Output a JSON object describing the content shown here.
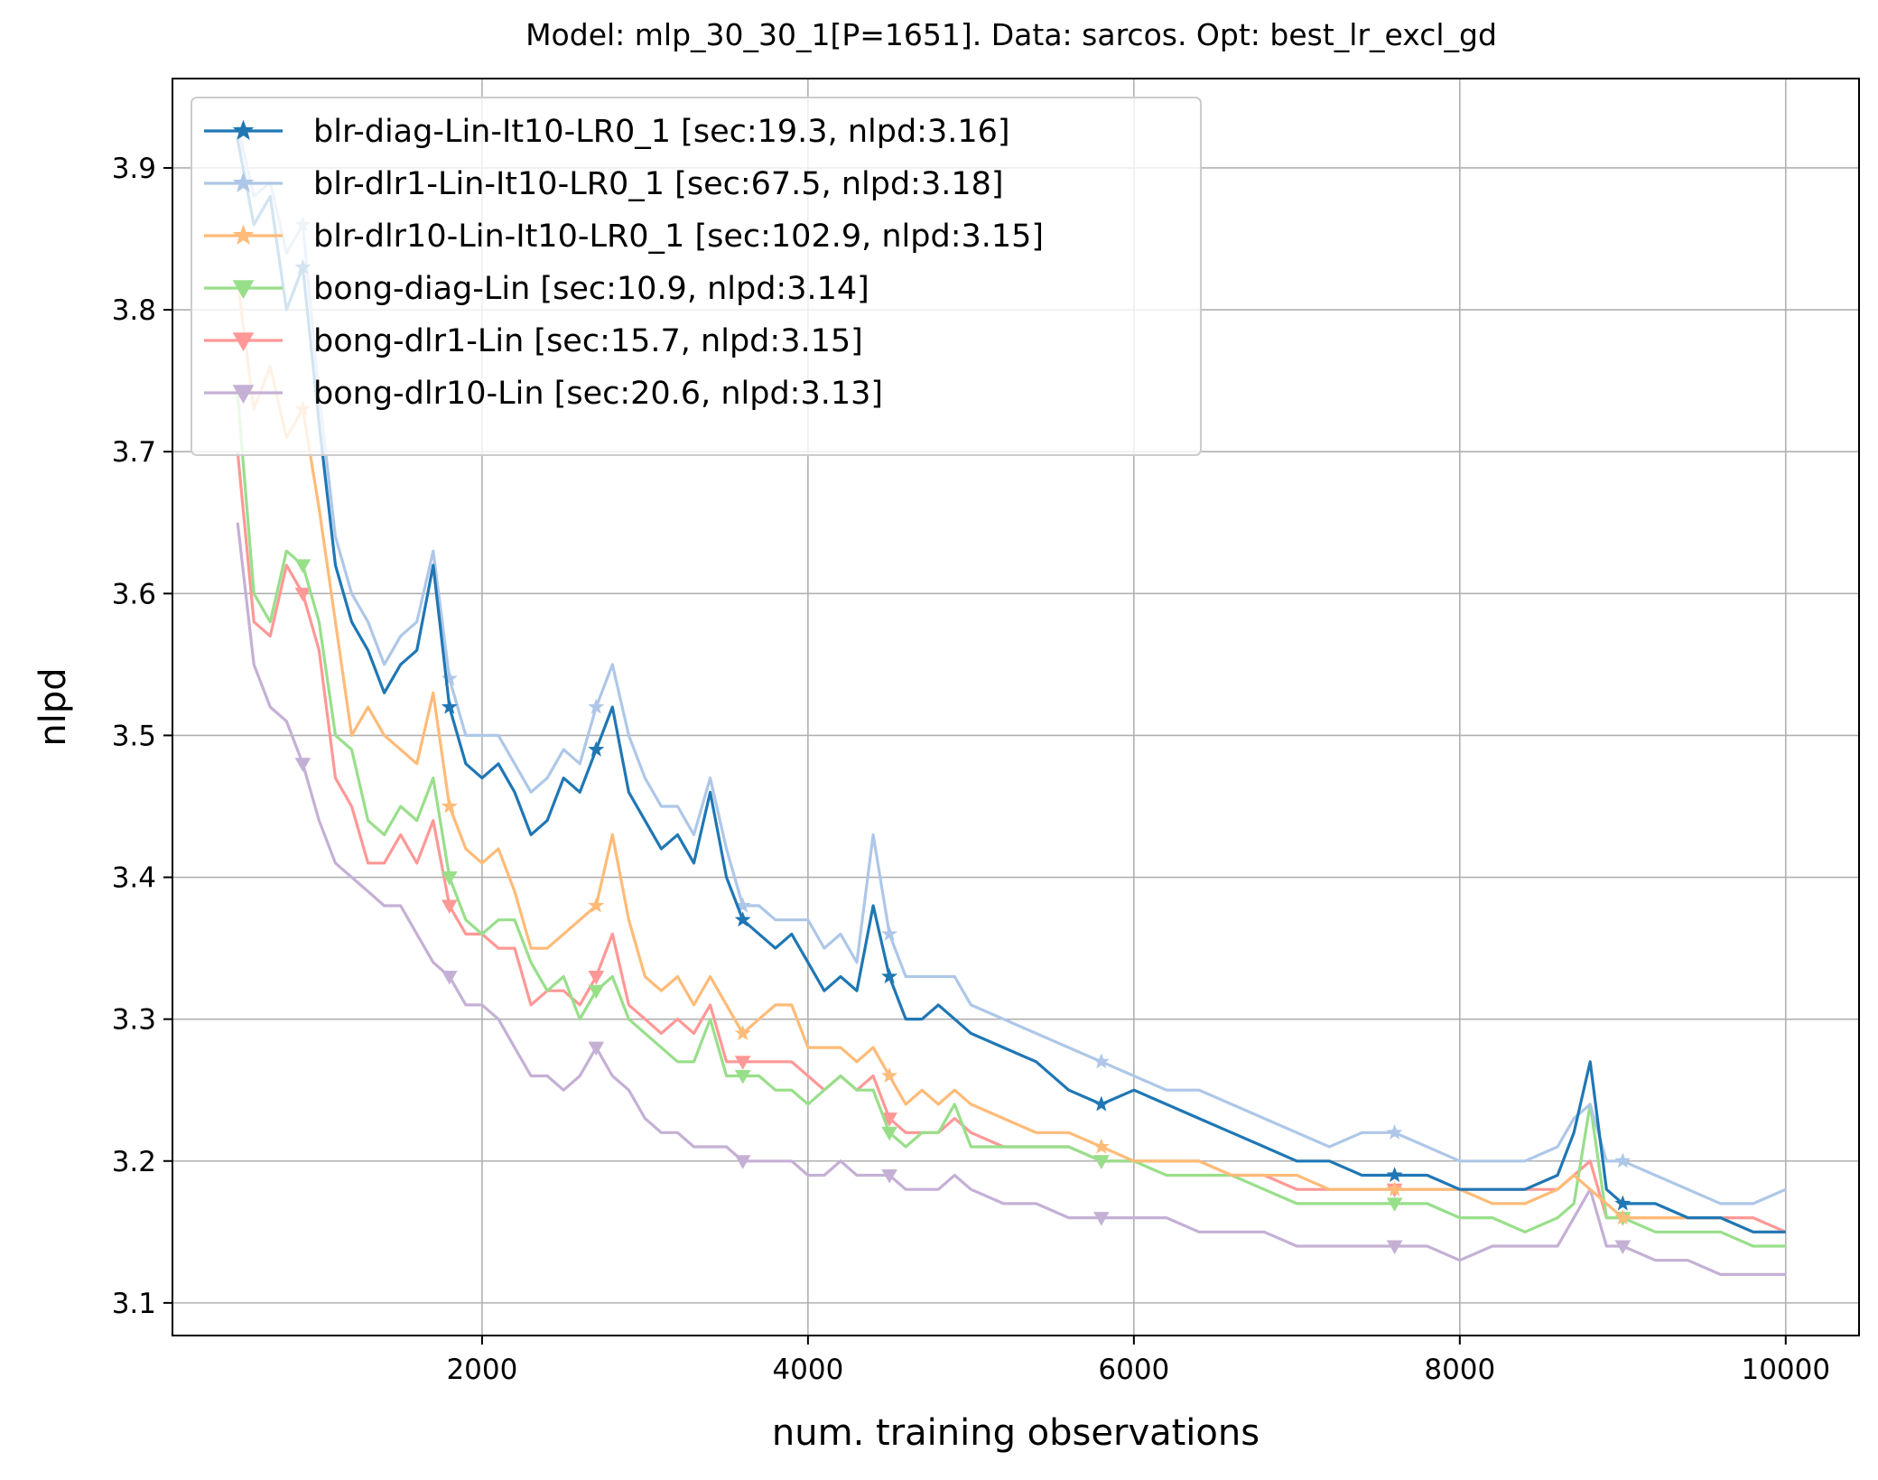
{
  "chart_data": {
    "type": "line",
    "title": "Model: mlp_30_30_1[P=1651]. Data: sarcos. Opt: best_lr_excl_gd",
    "xlabel": "num. training observations",
    "ylabel": "nlpd",
    "xlim": [
      100,
      10450
    ],
    "ylim": [
      3.077,
      3.963
    ],
    "xticks": [
      2000,
      4000,
      6000,
      8000,
      10000
    ],
    "xtick_labels": [
      "2000",
      "4000",
      "6000",
      "8000",
      "10000"
    ],
    "yticks": [
      3.1,
      3.2,
      3.3,
      3.4,
      3.5,
      3.6,
      3.7,
      3.8,
      3.9
    ],
    "ytick_labels": [
      "3.1",
      "3.2",
      "3.3",
      "3.4",
      "3.5",
      "3.6",
      "3.7",
      "3.8",
      "3.9"
    ],
    "grid": true,
    "legend_position": "top-left",
    "series": [
      {
        "name": "blr-diag-Lin-It10-LR0_1 [sec:19.3, nlpd:3.16]",
        "color": "#1f77b4",
        "marker": "star",
        "x": [
          500,
          600,
          700,
          800,
          900,
          1000,
          1100,
          1200,
          1300,
          1400,
          1500,
          1600,
          1700,
          1800,
          1900,
          2000,
          2100,
          2200,
          2300,
          2400,
          2500,
          2600,
          2700,
          2800,
          2900,
          3000,
          3100,
          3200,
          3300,
          3400,
          3500,
          3600,
          3700,
          3800,
          3900,
          4000,
          4100,
          4200,
          4300,
          4400,
          4500,
          4600,
          4700,
          4800,
          4900,
          5000,
          5200,
          5400,
          5600,
          5800,
          6000,
          6200,
          6400,
          6600,
          6800,
          7000,
          7200,
          7400,
          7600,
          7800,
          8000,
          8200,
          8400,
          8600,
          8700,
          8800,
          8900,
          9000,
          9200,
          9400,
          9600,
          9800,
          10000
        ],
        "y": [
          3.92,
          3.86,
          3.88,
          3.8,
          3.83,
          3.72,
          3.62,
          3.58,
          3.56,
          3.53,
          3.55,
          3.56,
          3.62,
          3.52,
          3.48,
          3.47,
          3.48,
          3.46,
          3.43,
          3.44,
          3.47,
          3.46,
          3.49,
          3.52,
          3.46,
          3.44,
          3.42,
          3.43,
          3.41,
          3.46,
          3.4,
          3.37,
          3.36,
          3.35,
          3.36,
          3.34,
          3.32,
          3.33,
          3.32,
          3.38,
          3.33,
          3.3,
          3.3,
          3.31,
          3.3,
          3.29,
          3.28,
          3.27,
          3.25,
          3.24,
          3.25,
          3.24,
          3.23,
          3.22,
          3.21,
          3.2,
          3.2,
          3.19,
          3.19,
          3.19,
          3.18,
          3.18,
          3.18,
          3.19,
          3.22,
          3.27,
          3.18,
          3.17,
          3.17,
          3.16,
          3.16,
          3.15,
          3.15
        ]
      },
      {
        "name": "blr-dlr1-Lin-It10-LR0_1 [sec:67.5, nlpd:3.18]",
        "color": "#aec7e8",
        "marker": "star",
        "x": [
          500,
          600,
          700,
          800,
          900,
          1000,
          1100,
          1200,
          1300,
          1400,
          1500,
          1600,
          1700,
          1800,
          1900,
          2000,
          2100,
          2200,
          2300,
          2400,
          2500,
          2600,
          2700,
          2800,
          2900,
          3000,
          3100,
          3200,
          3300,
          3400,
          3500,
          3600,
          3700,
          3800,
          3900,
          4000,
          4100,
          4200,
          4300,
          4400,
          4500,
          4600,
          4700,
          4800,
          4900,
          5000,
          5200,
          5400,
          5600,
          5800,
          6000,
          6200,
          6400,
          6600,
          6800,
          7000,
          7200,
          7400,
          7600,
          7800,
          8000,
          8200,
          8400,
          8600,
          8700,
          8800,
          8900,
          9000,
          9200,
          9400,
          9600,
          9800,
          10000
        ],
        "y": [
          3.93,
          3.88,
          3.89,
          3.84,
          3.86,
          3.74,
          3.64,
          3.6,
          3.58,
          3.55,
          3.57,
          3.58,
          3.63,
          3.54,
          3.5,
          3.5,
          3.5,
          3.48,
          3.46,
          3.47,
          3.49,
          3.48,
          3.52,
          3.55,
          3.5,
          3.47,
          3.45,
          3.45,
          3.43,
          3.47,
          3.42,
          3.38,
          3.38,
          3.37,
          3.37,
          3.37,
          3.35,
          3.36,
          3.34,
          3.43,
          3.36,
          3.33,
          3.33,
          3.33,
          3.33,
          3.31,
          3.3,
          3.29,
          3.28,
          3.27,
          3.26,
          3.25,
          3.25,
          3.24,
          3.23,
          3.22,
          3.21,
          3.22,
          3.22,
          3.21,
          3.2,
          3.2,
          3.2,
          3.21,
          3.23,
          3.24,
          3.2,
          3.2,
          3.19,
          3.18,
          3.17,
          3.17,
          3.18
        ]
      },
      {
        "name": "blr-dlr10-Lin-It10-LR0_1 [sec:102.9, nlpd:3.15]",
        "color": "#ffbb78",
        "marker": "star",
        "x": [
          500,
          600,
          700,
          800,
          900,
          1000,
          1100,
          1200,
          1300,
          1400,
          1500,
          1600,
          1700,
          1800,
          1900,
          2000,
          2100,
          2200,
          2300,
          2400,
          2500,
          2600,
          2700,
          2800,
          2900,
          3000,
          3100,
          3200,
          3300,
          3400,
          3500,
          3600,
          3700,
          3800,
          3900,
          4000,
          4100,
          4200,
          4300,
          4400,
          4500,
          4600,
          4700,
          4800,
          4900,
          5000,
          5200,
          5400,
          5600,
          5800,
          6000,
          6200,
          6400,
          6600,
          6800,
          7000,
          7200,
          7400,
          7600,
          7800,
          8000,
          8200,
          8400,
          8600,
          8700,
          8800,
          8900,
          9000,
          9200,
          9400,
          9600,
          9800,
          10000
        ],
        "y": [
          3.82,
          3.73,
          3.76,
          3.71,
          3.73,
          3.66,
          3.58,
          3.5,
          3.52,
          3.5,
          3.49,
          3.48,
          3.53,
          3.45,
          3.42,
          3.41,
          3.42,
          3.39,
          3.35,
          3.35,
          3.36,
          3.37,
          3.38,
          3.43,
          3.37,
          3.33,
          3.32,
          3.33,
          3.31,
          3.33,
          3.31,
          3.29,
          3.3,
          3.31,
          3.31,
          3.28,
          3.28,
          3.28,
          3.27,
          3.28,
          3.26,
          3.24,
          3.25,
          3.24,
          3.25,
          3.24,
          3.23,
          3.22,
          3.22,
          3.21,
          3.2,
          3.2,
          3.2,
          3.19,
          3.19,
          3.19,
          3.18,
          3.18,
          3.18,
          3.18,
          3.18,
          3.17,
          3.17,
          3.18,
          3.19,
          3.18,
          3.17,
          3.16,
          3.16,
          3.16,
          3.16,
          3.15,
          3.15
        ]
      },
      {
        "name": "bong-diag-Lin [sec:10.9, nlpd:3.14]",
        "color": "#98df8a",
        "marker": "triangle-down",
        "x": [
          500,
          600,
          700,
          800,
          900,
          1000,
          1100,
          1200,
          1300,
          1400,
          1500,
          1600,
          1700,
          1800,
          1900,
          2000,
          2100,
          2200,
          2300,
          2400,
          2500,
          2600,
          2700,
          2800,
          2900,
          3000,
          3100,
          3200,
          3300,
          3400,
          3500,
          3600,
          3700,
          3800,
          3900,
          4000,
          4100,
          4200,
          4300,
          4400,
          4500,
          4600,
          4700,
          4800,
          4900,
          5000,
          5200,
          5400,
          5600,
          5800,
          6000,
          6200,
          6400,
          6600,
          6800,
          7000,
          7200,
          7400,
          7600,
          7800,
          8000,
          8200,
          8400,
          8600,
          8700,
          8800,
          8900,
          9000,
          9200,
          9400,
          9600,
          9800,
          10000
        ],
        "y": [
          3.74,
          3.6,
          3.58,
          3.63,
          3.62,
          3.58,
          3.5,
          3.49,
          3.44,
          3.43,
          3.45,
          3.44,
          3.47,
          3.4,
          3.37,
          3.36,
          3.37,
          3.37,
          3.34,
          3.32,
          3.33,
          3.3,
          3.32,
          3.33,
          3.3,
          3.29,
          3.28,
          3.27,
          3.27,
          3.3,
          3.26,
          3.26,
          3.26,
          3.25,
          3.25,
          3.24,
          3.25,
          3.26,
          3.25,
          3.25,
          3.22,
          3.21,
          3.22,
          3.22,
          3.24,
          3.21,
          3.21,
          3.21,
          3.21,
          3.2,
          3.2,
          3.19,
          3.19,
          3.19,
          3.18,
          3.17,
          3.17,
          3.17,
          3.17,
          3.17,
          3.16,
          3.16,
          3.15,
          3.16,
          3.17,
          3.24,
          3.16,
          3.16,
          3.15,
          3.15,
          3.15,
          3.14,
          3.14
        ]
      },
      {
        "name": "bong-dlr1-Lin [sec:15.7, nlpd:3.15]",
        "color": "#ff9896",
        "marker": "triangle-down",
        "x": [
          500,
          600,
          700,
          800,
          900,
          1000,
          1100,
          1200,
          1300,
          1400,
          1500,
          1600,
          1700,
          1800,
          1900,
          2000,
          2100,
          2200,
          2300,
          2400,
          2500,
          2600,
          2700,
          2800,
          2900,
          3000,
          3100,
          3200,
          3300,
          3400,
          3500,
          3600,
          3700,
          3800,
          3900,
          4000,
          4100,
          4200,
          4300,
          4400,
          4500,
          4600,
          4700,
          4800,
          4900,
          5000,
          5200,
          5400,
          5600,
          5800,
          6000,
          6200,
          6400,
          6600,
          6800,
          7000,
          7200,
          7400,
          7600,
          7800,
          8000,
          8200,
          8400,
          8600,
          8700,
          8800,
          8900,
          9000,
          9200,
          9400,
          9600,
          9800,
          10000
        ],
        "y": [
          3.7,
          3.58,
          3.57,
          3.62,
          3.6,
          3.56,
          3.47,
          3.45,
          3.41,
          3.41,
          3.43,
          3.41,
          3.44,
          3.38,
          3.36,
          3.36,
          3.35,
          3.35,
          3.31,
          3.32,
          3.32,
          3.31,
          3.33,
          3.36,
          3.31,
          3.3,
          3.29,
          3.3,
          3.29,
          3.31,
          3.27,
          3.27,
          3.27,
          3.27,
          3.27,
          3.26,
          3.25,
          3.26,
          3.25,
          3.26,
          3.23,
          3.22,
          3.22,
          3.22,
          3.23,
          3.22,
          3.21,
          3.21,
          3.21,
          3.2,
          3.2,
          3.2,
          3.2,
          3.19,
          3.19,
          3.18,
          3.18,
          3.18,
          3.18,
          3.18,
          3.18,
          3.18,
          3.18,
          3.18,
          3.19,
          3.2,
          3.16,
          3.16,
          3.16,
          3.16,
          3.16,
          3.16,
          3.15
        ]
      },
      {
        "name": "bong-dlr10-Lin [sec:20.6, nlpd:3.13]",
        "color": "#c5b0d5",
        "marker": "triangle-down",
        "x": [
          500,
          600,
          700,
          800,
          900,
          1000,
          1100,
          1200,
          1300,
          1400,
          1500,
          1600,
          1700,
          1800,
          1900,
          2000,
          2100,
          2200,
          2300,
          2400,
          2500,
          2600,
          2700,
          2800,
          2900,
          3000,
          3100,
          3200,
          3300,
          3400,
          3500,
          3600,
          3700,
          3800,
          3900,
          4000,
          4100,
          4200,
          4300,
          4400,
          4500,
          4600,
          4700,
          4800,
          4900,
          5000,
          5200,
          5400,
          5600,
          5800,
          6000,
          6200,
          6400,
          6600,
          6800,
          7000,
          7200,
          7400,
          7600,
          7800,
          8000,
          8200,
          8400,
          8600,
          8700,
          8800,
          8900,
          9000,
          9200,
          9400,
          9600,
          9800,
          10000
        ],
        "y": [
          3.65,
          3.55,
          3.52,
          3.51,
          3.48,
          3.44,
          3.41,
          3.4,
          3.39,
          3.38,
          3.38,
          3.36,
          3.34,
          3.33,
          3.31,
          3.31,
          3.3,
          3.28,
          3.26,
          3.26,
          3.25,
          3.26,
          3.28,
          3.26,
          3.25,
          3.23,
          3.22,
          3.22,
          3.21,
          3.21,
          3.21,
          3.2,
          3.2,
          3.2,
          3.2,
          3.19,
          3.19,
          3.2,
          3.19,
          3.19,
          3.19,
          3.18,
          3.18,
          3.18,
          3.19,
          3.18,
          3.17,
          3.17,
          3.16,
          3.16,
          3.16,
          3.16,
          3.15,
          3.15,
          3.15,
          3.14,
          3.14,
          3.14,
          3.14,
          3.14,
          3.13,
          3.14,
          3.14,
          3.14,
          3.16,
          3.18,
          3.14,
          3.14,
          3.13,
          3.13,
          3.12,
          3.12,
          3.12
        ]
      }
    ]
  }
}
